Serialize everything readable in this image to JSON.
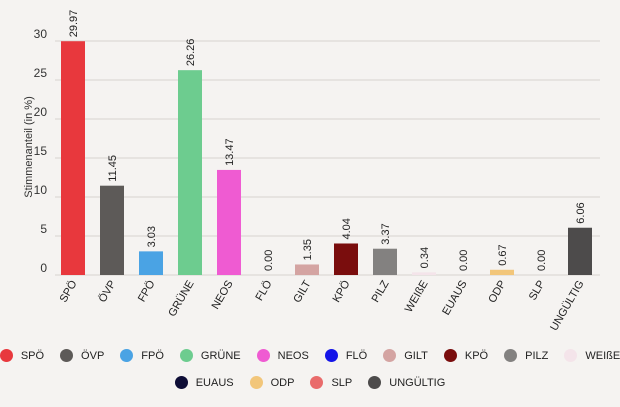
{
  "chart_data": {
    "type": "bar",
    "ylabel": "Stimmenanteil (in %)",
    "ylim": [
      0,
      30
    ],
    "yticks": [
      0,
      5,
      10,
      15,
      20,
      25,
      30
    ],
    "grid": true,
    "legend_position": "bottom",
    "categories": [
      "SPÖ",
      "ÖVP",
      "FPÖ",
      "GRÜNE",
      "NEOS",
      "FLÖ",
      "GILT",
      "KPÖ",
      "PILZ",
      "WEIßE",
      "EUAUS",
      "ODP",
      "SLP",
      "UNGÜLTIG"
    ],
    "values": [
      29.97,
      11.45,
      3.03,
      26.26,
      13.47,
      0.0,
      1.35,
      4.04,
      3.37,
      0.34,
      0.0,
      0.67,
      0.0,
      6.06
    ],
    "value_labels": [
      "29.97",
      "11.45",
      "3.03",
      "26.26",
      "13.47",
      "0.00",
      "1.35",
      "4.04",
      "3.37",
      "0.34",
      "0.00",
      "0.67",
      "0.00",
      "6.06"
    ],
    "colors": [
      "#e8383d",
      "#5d5a58",
      "#4aa3e4",
      "#6dcc8f",
      "#ef5bd2",
      "#1414e8",
      "#d4a4a2",
      "#7a0d0d",
      "#838180",
      "#f4e4ea",
      "#0e0d36",
      "#f2c67a",
      "#e96b6b",
      "#4d4b4b"
    ]
  },
  "legend": {
    "row1": [
      {
        "label": "SPÖ",
        "color": "#e8383d"
      },
      {
        "label": "ÖVP",
        "color": "#5d5a58"
      },
      {
        "label": "FPÖ",
        "color": "#4aa3e4"
      },
      {
        "label": "GRÜNE",
        "color": "#6dcc8f"
      },
      {
        "label": "NEOS",
        "color": "#ef5bd2"
      },
      {
        "label": "FLÖ",
        "color": "#1414e8"
      },
      {
        "label": "GILT",
        "color": "#d4a4a2"
      },
      {
        "label": "KPÖ",
        "color": "#7a0d0d"
      },
      {
        "label": "PILZ",
        "color": "#838180"
      },
      {
        "label": "WEIßE",
        "color": "#f4e4ea"
      }
    ],
    "row2": [
      {
        "label": "EUAUS",
        "color": "#0e0d36"
      },
      {
        "label": "ODP",
        "color": "#f2c67a"
      },
      {
        "label": "SLP",
        "color": "#e96b6b"
      },
      {
        "label": "UNGÜLTIG",
        "color": "#4d4b4b"
      }
    ]
  }
}
